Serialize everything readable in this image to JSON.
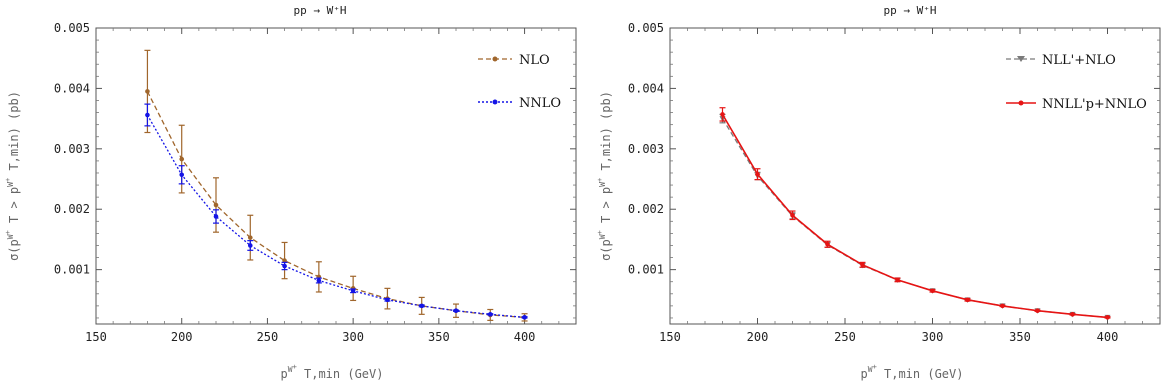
{
  "chart_data": [
    {
      "type": "line",
      "title": "pp → W⁺H",
      "xlabel": "pW⁺T,min (GeV)",
      "ylabel": "σ(pW⁺T > pW⁺T,min) (pb)",
      "xlim": [
        150,
        430
      ],
      "ylim": [
        0.0001,
        0.005
      ],
      "xticks": [
        "150",
        "200",
        "250",
        "300",
        "350",
        "400"
      ],
      "yticks": [
        "0.001",
        "0.002",
        "0.003",
        "0.004",
        "0.005"
      ],
      "grid": false,
      "legend_position": "top-right",
      "series": [
        {
          "name": "NLO",
          "color": "#a0662c",
          "dash": "dashed",
          "x": [
            180,
            200,
            220,
            240,
            260,
            280,
            300,
            320,
            340,
            360,
            380,
            400
          ],
          "y": [
            0.00395,
            0.00283,
            0.00207,
            0.00153,
            0.00115,
            0.00088,
            0.00069,
            0.00052,
            0.0004,
            0.00032,
            0.00025,
            0.00021
          ],
          "err": [
            0.00068,
            0.00056,
            0.00045,
            0.00037,
            0.0003,
            0.00025,
            0.0002,
            0.00017,
            0.00014,
            0.00011,
            9e-05,
            6e-05
          ]
        },
        {
          "name": "NNLO",
          "color": "#1414e6",
          "dash": "dotted",
          "x": [
            180,
            200,
            220,
            240,
            260,
            280,
            300,
            320,
            340,
            360,
            380,
            400
          ],
          "y": [
            0.00356,
            0.00257,
            0.00188,
            0.0014,
            0.00106,
            0.00082,
            0.00065,
            0.0005,
            0.0004,
            0.00032,
            0.00026,
            0.00021
          ],
          "err": [
            0.00018,
            0.00015,
            0.00011,
            8e-05,
            6e-05,
            4e-05,
            3e-05,
            2e-05,
            1.5e-05,
            1e-05,
            1e-05,
            1e-05
          ]
        }
      ]
    },
    {
      "type": "line",
      "title": "pp → W⁺H",
      "xlabel": "pW⁺T,min (GeV)",
      "ylabel": "σ(pW⁺T > pW⁺T,min) (pb)",
      "xlim": [
        150,
        430
      ],
      "ylim": [
        0.0001,
        0.005
      ],
      "xticks": [
        "150",
        "200",
        "250",
        "300",
        "350",
        "400"
      ],
      "yticks": [
        "0.001",
        "0.002",
        "0.003",
        "0.004",
        "0.005"
      ],
      "grid": false,
      "legend_position": "top-right",
      "series": [
        {
          "name": "NLL'+NLO",
          "color": "#7a7a7a",
          "dash": "dashed",
          "x": [
            180,
            200,
            220,
            240,
            260,
            280,
            300,
            320,
            340,
            360,
            380,
            400
          ],
          "y": [
            0.0035,
            0.00255,
            0.00189,
            0.00141,
            0.00107,
            0.00083,
            0.00065,
            0.0005,
            0.0004,
            0.00032,
            0.00026,
            0.00021
          ],
          "err": [
            7e-05,
            6e-05,
            5e-05,
            4e-05,
            3e-05,
            2e-05,
            2e-05,
            1e-05,
            1e-05,
            1e-05,
            1e-05,
            1e-05
          ]
        },
        {
          "name": "NNLL'p+NNLO",
          "color": "#e61414",
          "dash": "solid",
          "x": [
            180,
            200,
            220,
            240,
            260,
            280,
            300,
            320,
            340,
            360,
            380,
            400
          ],
          "y": [
            0.00357,
            0.00258,
            0.0019,
            0.00142,
            0.00108,
            0.00083,
            0.00065,
            0.0005,
            0.0004,
            0.00032,
            0.00026,
            0.00021
          ],
          "err": [
            0.00011,
            9e-05,
            7e-05,
            5e-05,
            4e-05,
            3e-05,
            2e-05,
            2e-05,
            1e-05,
            1e-05,
            1e-05,
            1e-05
          ]
        }
      ]
    }
  ]
}
